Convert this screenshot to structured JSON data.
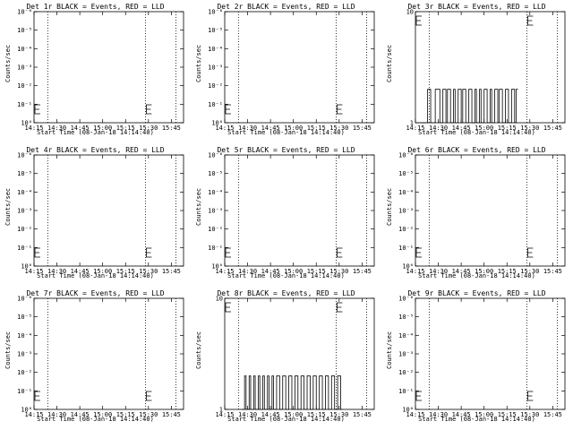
{
  "chart_data": [
    {
      "type": "line",
      "title": "Det 1r BLACK = Events, RED = LLD",
      "xlabel": "Start Time (08-Jan-18 14:14:40)",
      "ylabel": "Counts/sec",
      "yscale": "log",
      "ytick_labels": [
        "10⁰",
        "10⁻¹",
        "10⁻²",
        "10⁻³",
        "10⁻⁴",
        "10⁻⁵",
        "10⁻⁶"
      ],
      "xtick_labels": [
        "14:15",
        "14:30",
        "14:45",
        "15:00",
        "15:15",
        "15:30",
        "15:45"
      ],
      "series": [
        {
          "color": "#000000",
          "x": [],
          "y": []
        }
      ]
    },
    {
      "type": "line",
      "title": "Det 2r BLACK = Events, RED = LLD",
      "xlabel": "Start Time (08-Jan-18 14:14:40)",
      "ylabel": "Counts/sec",
      "yscale": "log",
      "ytick_labels": [
        "10⁰",
        "10⁻¹",
        "10⁻²",
        "10⁻³",
        "10⁻⁴",
        "10⁻⁵",
        "10⁻⁶"
      ],
      "xtick_labels": [
        "14:15",
        "14:30",
        "14:45",
        "15:00",
        "15:15",
        "15:30",
        "15:45"
      ],
      "series": [
        {
          "color": "#000000",
          "x": [],
          "y": []
        }
      ]
    },
    {
      "type": "line",
      "title": "Det 3r BLACK = Events, RED = LLD",
      "xlabel": "Start Time (08-Jan-18 14:14:40)",
      "ylabel": "Counts/sec",
      "yscale": "log",
      "ytick_labels": [
        "1",
        "10"
      ],
      "xtick_labels": [
        "14:15",
        "14:30",
        "14:45",
        "15:00",
        "15:15",
        "15:30",
        "15:45"
      ],
      "series": [
        {
          "color": "#000000",
          "x": [
            "14:18",
            "14:23",
            "14:25",
            "14:28",
            "14:31",
            "14:33",
            "14:35",
            "14:36",
            "14:38",
            "14:40",
            "14:41",
            "14:43",
            "14:45",
            "14:46",
            "14:48",
            "14:50",
            "14:52",
            "14:54",
            "14:55",
            "14:57",
            "14:58",
            "15:00",
            "15:02",
            "15:04",
            "15:05",
            "15:07",
            "15:09",
            "15:10",
            "15:12",
            "15:14",
            "15:16",
            "15:18",
            "15:20",
            "15:21"
          ],
          "y": [
            1,
            2,
            1,
            2,
            1,
            2,
            1,
            2,
            1,
            2,
            1,
            2,
            1,
            2,
            1,
            2,
            1,
            2,
            1,
            2,
            1,
            2,
            1,
            2,
            1,
            2,
            1,
            2,
            1,
            2,
            1,
            2,
            1,
            2
          ]
        }
      ]
    },
    {
      "type": "line",
      "title": "Det 4r BLACK = Events, RED = LLD",
      "xlabel": "Start Time (08-Jan-18 14:14:40)",
      "ylabel": "Counts/sec",
      "yscale": "log",
      "ytick_labels": [
        "10⁰",
        "10⁻¹",
        "10⁻²",
        "10⁻³",
        "10⁻⁴",
        "10⁻⁵",
        "10⁻⁶"
      ],
      "xtick_labels": [
        "14:15",
        "14:30",
        "14:45",
        "15:00",
        "15:15",
        "15:30",
        "15:45"
      ],
      "series": [
        {
          "color": "#000000",
          "x": [],
          "y": []
        }
      ]
    },
    {
      "type": "line",
      "title": "Det 5r BLACK = Events, RED = LLD",
      "xlabel": "Start Time (08-Jan-18 14:14:40)",
      "ylabel": "Counts/sec",
      "yscale": "log",
      "ytick_labels": [
        "10⁰",
        "10⁻¹",
        "10⁻²",
        "10⁻³",
        "10⁻⁴",
        "10⁻⁵",
        "10⁻⁶"
      ],
      "xtick_labels": [
        "14:15",
        "14:30",
        "14:45",
        "15:00",
        "15:15",
        "15:30",
        "15:45"
      ],
      "series": [
        {
          "color": "#000000",
          "x": [],
          "y": []
        }
      ]
    },
    {
      "type": "line",
      "title": "Det 6r BLACK = Events, RED = LLD",
      "xlabel": "Start Time (08-Jan-18 14:14:40)",
      "ylabel": "Counts/sec",
      "yscale": "log",
      "ytick_labels": [
        "10⁰",
        "10⁻¹",
        "10⁻²",
        "10⁻³",
        "10⁻⁴",
        "10⁻⁵",
        "10⁻⁶"
      ],
      "xtick_labels": [
        "14:15",
        "14:30",
        "14:45",
        "15:00",
        "15:15",
        "15:30",
        "15:45"
      ],
      "series": [
        {
          "color": "#000000",
          "x": [],
          "y": []
        }
      ]
    },
    {
      "type": "line",
      "title": "Det 7r BLACK = Events, RED = LLD",
      "xlabel": "Start Time (08-Jan-18 14:14:40)",
      "ylabel": "Counts/sec",
      "yscale": "log",
      "ytick_labels": [
        "10⁰",
        "10⁻¹",
        "10⁻²",
        "10⁻³",
        "10⁻⁴",
        "10⁻⁵",
        "10⁻⁶"
      ],
      "xtick_labels": [
        "14:15",
        "14:30",
        "14:45",
        "15:00",
        "15:15",
        "15:30",
        "15:45"
      ],
      "series": [
        {
          "color": "#000000",
          "x": [],
          "y": []
        }
      ]
    },
    {
      "type": "line",
      "title": "Det 8r BLACK = Events, RED = LLD",
      "xlabel": "Start Time (08-Jan-18 14:14:40)",
      "ylabel": "Counts/sec",
      "yscale": "log",
      "ytick_labels": [
        "1",
        "10"
      ],
      "xtick_labels": [
        "14:15",
        "14:30",
        "14:45",
        "15:00",
        "15:15",
        "15:30",
        "15:45"
      ],
      "series": [
        {
          "color": "#000000",
          "x": [
            "14:26",
            "14:28",
            "14:29",
            "14:31",
            "14:32",
            "14:34",
            "14:35",
            "14:37",
            "14:38",
            "14:40",
            "14:41",
            "14:43",
            "14:44",
            "14:46",
            "14:47",
            "14:49",
            "14:51",
            "14:53",
            "14:55",
            "14:57",
            "14:59",
            "15:01",
            "15:03",
            "15:05",
            "15:07",
            "15:09",
            "15:11",
            "15:13",
            "15:15",
            "15:17",
            "15:19",
            "15:21",
            "15:23",
            "15:25",
            "15:27",
            "15:29",
            "15:31"
          ],
          "y": [
            1,
            2,
            1,
            2,
            1,
            2,
            1,
            2,
            1,
            2,
            1,
            2,
            1,
            2,
            1,
            2,
            1,
            2,
            1,
            2,
            1,
            2,
            1,
            2,
            1,
            2,
            1,
            2,
            1,
            2,
            1,
            2,
            1,
            2,
            1,
            2,
            1
          ]
        }
      ]
    },
    {
      "type": "line",
      "title": "Det 9r BLACK = Events, RED = LLD",
      "xlabel": "Start Time (08-Jan-18 14:14:40)",
      "ylabel": "Counts/sec",
      "yscale": "log",
      "ytick_labels": [
        "10⁰",
        "10⁻¹",
        "10⁻²",
        "10⁻³",
        "10⁻⁴",
        "10⁻⁵",
        "10⁻⁶"
      ],
      "xtick_labels": [
        "14:15",
        "14:30",
        "14:45",
        "15:00",
        "15:15",
        "15:30",
        "15:45"
      ],
      "series": [
        {
          "color": "#000000",
          "x": [],
          "y": []
        }
      ]
    }
  ]
}
